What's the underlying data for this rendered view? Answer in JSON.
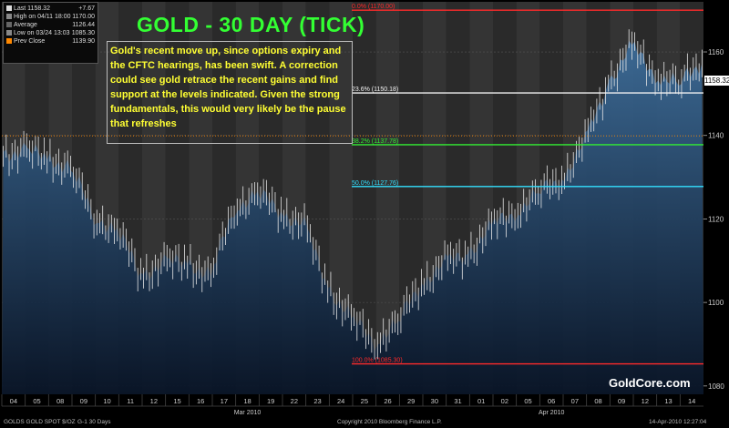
{
  "chart_data": {
    "type": "candlestick",
    "title": "GOLD - 30 DAY (TICK)",
    "ylim": [
      1078,
      1172
    ],
    "yticks": [
      1080,
      1100,
      1120,
      1140,
      1160
    ],
    "categories": [
      "04",
      "05",
      "08",
      "09",
      "10",
      "11",
      "12",
      "15",
      "16",
      "17",
      "18",
      "19",
      "22",
      "23",
      "24",
      "25",
      "26",
      "29",
      "30",
      "31",
      "01",
      "02",
      "05",
      "06",
      "07",
      "08",
      "09",
      "12",
      "13",
      "14"
    ],
    "month_labels": [
      {
        "label": "Mar 2010",
        "at_category": 10
      },
      {
        "label": "Apr 2010",
        "at_category": 23
      }
    ],
    "close_levels": [
      1136,
      1135,
      1132,
      1121,
      1117,
      1107,
      1109,
      1110,
      1106,
      1123,
      1126,
      1122,
      1118,
      1104,
      1096,
      1091,
      1095,
      1105,
      1109,
      1112,
      1118,
      1122,
      1126,
      1130,
      1138,
      1153,
      1161,
      1155,
      1152,
      1158
    ],
    "fibonacci_levels": [
      {
        "label": "0.0% (1170.00)",
        "value": 1170.0,
        "color": "#ff2a2a"
      },
      {
        "label": "23.6% (1150.18)",
        "value": 1150.18,
        "color": "#f2f2f2"
      },
      {
        "label": "38.2% (1137.78)",
        "value": 1137.78,
        "color": "#33ee33"
      },
      {
        "label": "50.0% (1127.76)",
        "value": 1127.76,
        "color": "#33e0ff"
      },
      {
        "label": "100.0% (1085.30)",
        "value": 1085.3,
        "color": "#ff2a2a"
      }
    ],
    "prev_close": 1139.9,
    "last_value": "1158.32"
  },
  "legend": {
    "last_label": "Last 1158.32",
    "last_change": "+7.67",
    "high_label": "High on 04/11 18:00",
    "high_value": "1170.00",
    "avg_label": "Average",
    "avg_value": "1126.44",
    "low_label": "Low on 03/24 13:03",
    "low_value": "1085.30",
    "prev_label": "Prev Close",
    "prev_value": "1139.90"
  },
  "annotation": "Gold's recent move up, since options expiry and the CFTC hearings, has been swift. A correction could see gold retrace the recent gains and find support at the levels indicated. Given the strong fundamentals, this would very likely be the pause that refreshes",
  "brand": "GoldCore.com",
  "footer": {
    "symbol": "GOLDS  GOLD SPOT $/OZ",
    "period": "G-1   30 Days",
    "copyright": "Copyright 2010 Bloomberg Finance L.P.",
    "timestamp": "14-Apr-2010 12:27:04"
  },
  "colors": {
    "title": "#33ff33",
    "annotation": "#ffff33",
    "bar_top": "#3d6e9c",
    "bar_bottom": "#071326"
  }
}
